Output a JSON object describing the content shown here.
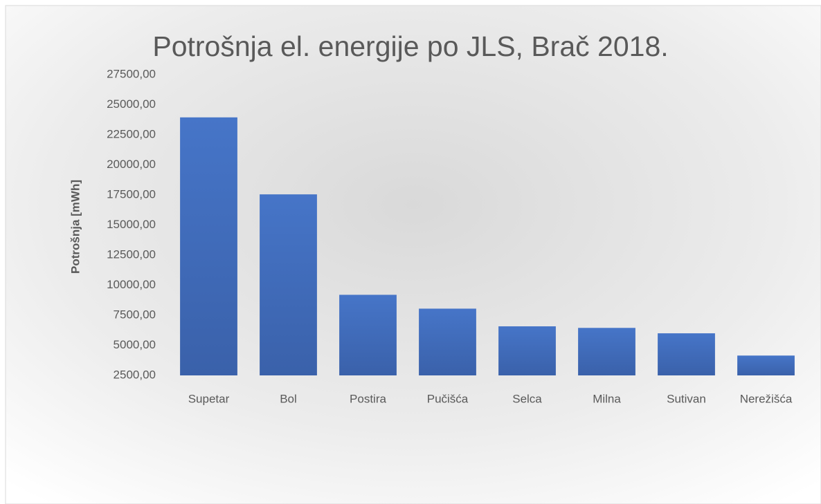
{
  "chart_data": {
    "type": "bar",
    "title": "Potrošnja el. energije po JLS, Brač 2018.",
    "y_label": "Potrošnja [mWh]",
    "categories": [
      "Supetar",
      "Bol",
      "Postira",
      "Pučišća",
      "Selca",
      "Milna",
      "Sutivan",
      "Nerežišća"
    ],
    "values": [
      23950,
      17550,
      9200,
      8050,
      6580,
      6450,
      6000,
      4150
    ],
    "color": "#4472c4",
    "ylim": [
      2500,
      27500
    ],
    "yticks": [
      {
        "value": 2500,
        "label": "2500,00"
      },
      {
        "value": 5000,
        "label": "5000,00"
      },
      {
        "value": 7500,
        "label": "7500,00"
      },
      {
        "value": 10000,
        "label": "10000,00"
      },
      {
        "value": 12500,
        "label": "12500,00"
      },
      {
        "value": 15000,
        "label": "15000,00"
      },
      {
        "value": 17500,
        "label": "17500,00"
      },
      {
        "value": 20000,
        "label": "20000,00"
      },
      {
        "value": 22500,
        "label": "22500,00"
      },
      {
        "value": 25000,
        "label": "25000,00"
      },
      {
        "value": 27500,
        "label": "27500,00"
      }
    ],
    "grid": false
  }
}
